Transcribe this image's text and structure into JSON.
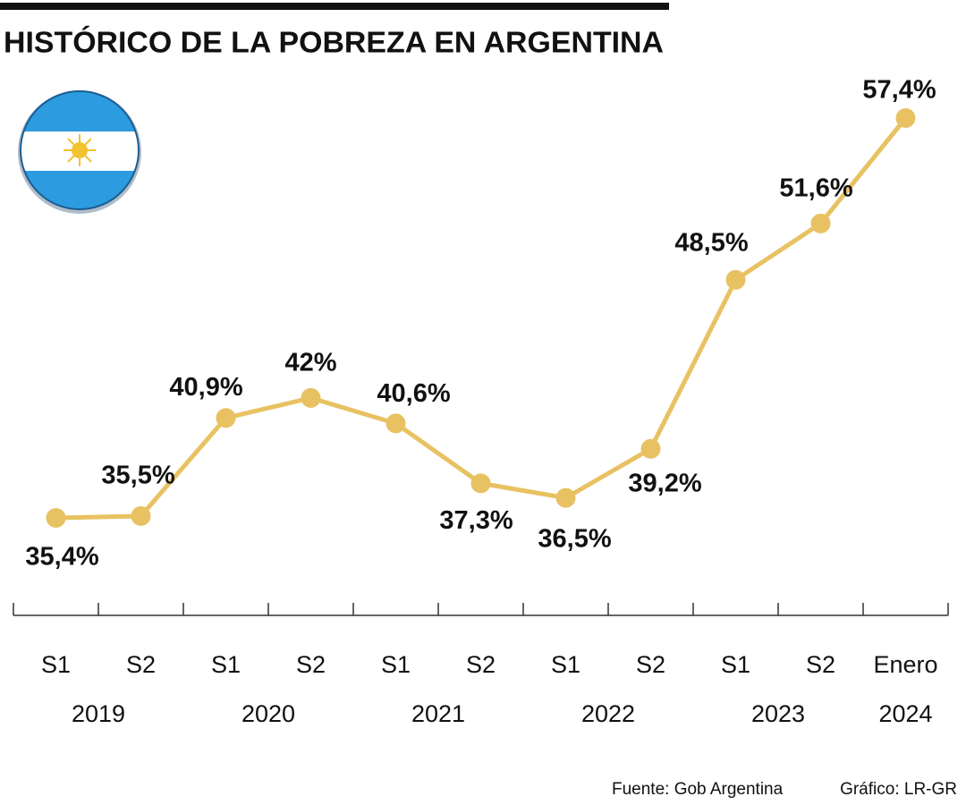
{
  "chart_data": {
    "type": "line",
    "title": "HISTÓRICO DE LA POBREZA EN ARGENTINA",
    "categories": [
      "S1",
      "S2",
      "S1",
      "S2",
      "S1",
      "S2",
      "S1",
      "S2",
      "S1",
      "S2",
      "Enero"
    ],
    "groups": [
      "2019",
      "2020",
      "2021",
      "2022",
      "2023",
      "2024"
    ],
    "values": [
      35.4,
      35.5,
      40.9,
      42,
      40.6,
      37.3,
      36.5,
      39.2,
      48.5,
      51.6,
      57.4
    ],
    "value_labels": [
      "35,4%",
      "35,5%",
      "40,9%",
      "42%",
      "40,6%",
      "37,3%",
      "36,5%",
      "39,2%",
      "48,5%",
      "51,6%",
      "57,4%"
    ],
    "color": "#e8c262",
    "source": "Fuente: Gob Argentina",
    "credit": "Gráfico: LR-GR"
  }
}
